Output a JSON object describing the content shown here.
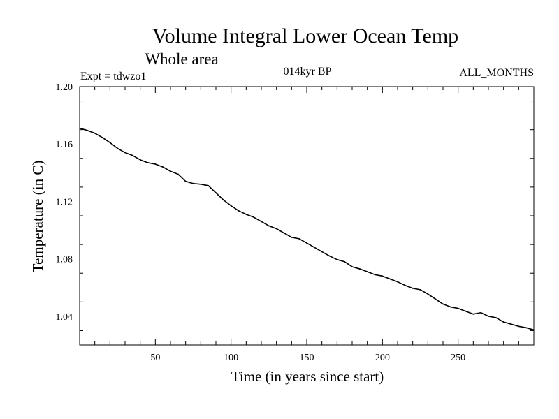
{
  "chart_data": {
    "type": "line",
    "title": "Volume Integral Lower Ocean Temp",
    "subtitle": "Whole area",
    "header_left": "Expt = tdwzo1",
    "header_center": "014kyr BP",
    "header_right": "ALL_MONTHS",
    "xlabel": "Time (in years since start)",
    "ylabel": "Temperature (in C)",
    "xlim": [
      0,
      300
    ],
    "ylim": [
      1.02,
      1.2
    ],
    "xticks": [
      50,
      100,
      150,
      200,
      250
    ],
    "xtick_labels": [
      "50",
      "100",
      "150",
      "200",
      "250"
    ],
    "yticks": [
      1.04,
      1.08,
      1.12,
      1.16,
      1.2
    ],
    "ytick_labels": [
      "1.04",
      "1.08",
      "1.12",
      "1.16",
      "1.20"
    ],
    "grid": false,
    "colors": {
      "line": "#000000",
      "axis": "#000000",
      "background": "#ffffff"
    },
    "series": [
      {
        "name": "Volume Integral Lower Ocean Temp",
        "x": [
          0,
          5,
          10,
          15,
          20,
          25,
          30,
          35,
          40,
          45,
          50,
          55,
          60,
          65,
          70,
          75,
          80,
          85,
          90,
          95,
          100,
          105,
          110,
          115,
          120,
          125,
          130,
          135,
          140,
          145,
          150,
          155,
          160,
          165,
          170,
          175,
          180,
          185,
          190,
          195,
          200,
          205,
          210,
          215,
          220,
          225,
          230,
          235,
          240,
          245,
          250,
          255,
          260,
          265,
          270,
          275,
          280,
          285,
          290,
          295,
          300
        ],
        "values": [
          1.171,
          1.1695,
          1.1675,
          1.1645,
          1.161,
          1.157,
          1.154,
          1.152,
          1.149,
          1.147,
          1.146,
          1.144,
          1.141,
          1.139,
          1.134,
          1.1325,
          1.132,
          1.131,
          1.126,
          1.121,
          1.117,
          1.1135,
          1.111,
          1.109,
          1.106,
          1.103,
          1.101,
          1.098,
          1.095,
          1.094,
          1.091,
          1.088,
          1.085,
          1.082,
          1.0795,
          1.078,
          1.0745,
          1.073,
          1.071,
          1.069,
          1.068,
          1.066,
          1.064,
          1.0615,
          1.0595,
          1.0585,
          1.0555,
          1.052,
          1.0485,
          1.0465,
          1.0455,
          1.0435,
          1.0415,
          1.0425,
          1.04,
          1.039,
          1.036,
          1.0345,
          1.033,
          1.032,
          1.0305
        ]
      }
    ]
  }
}
